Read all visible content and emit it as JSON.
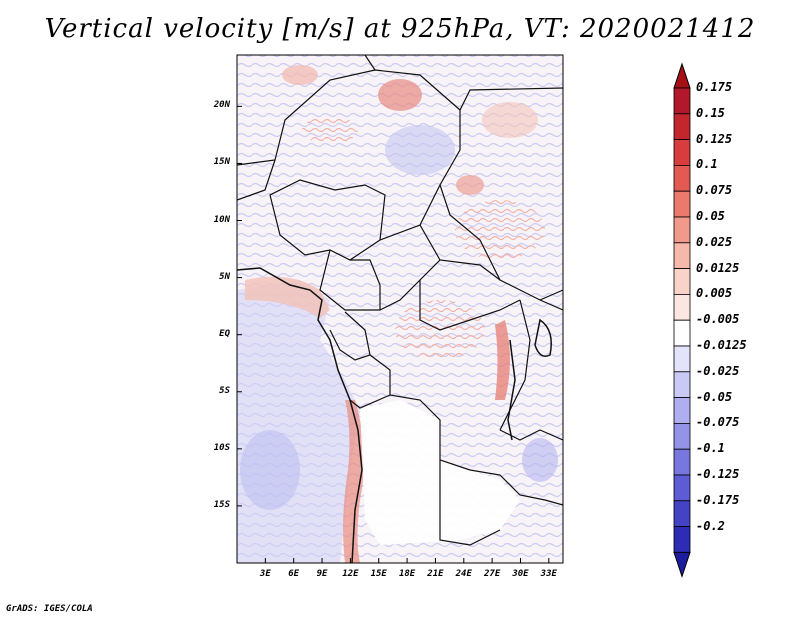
{
  "title": "Vertical velocity [m/s] at 925hPa, VT: 2020021412",
  "credit": "GrADS: IGES/COLA",
  "map": {
    "variable": "Vertical velocity",
    "units": "m/s",
    "level": "925hPa",
    "valid_time": "2020021412",
    "lon_range": [
      0,
      34.5
    ],
    "lat_range": [
      -20,
      24.5
    ],
    "lat_ticks": [
      {
        "value": 20,
        "label": "20N"
      },
      {
        "value": 15,
        "label": "15N"
      },
      {
        "value": 10,
        "label": "10N"
      },
      {
        "value": 5,
        "label": "5N"
      },
      {
        "value": 0,
        "label": "EQ"
      },
      {
        "value": -5,
        "label": "5S"
      },
      {
        "value": -10,
        "label": "10S"
      },
      {
        "value": -15,
        "label": "15S"
      }
    ],
    "lon_ticks": [
      {
        "value": 3,
        "label": "3E"
      },
      {
        "value": 6,
        "label": "6E"
      },
      {
        "value": 9,
        "label": "9E"
      },
      {
        "value": 12,
        "label": "12E"
      },
      {
        "value": 15,
        "label": "15E"
      },
      {
        "value": 18,
        "label": "18E"
      },
      {
        "value": 21,
        "label": "21E"
      },
      {
        "value": 24,
        "label": "24E"
      },
      {
        "value": 27,
        "label": "27E"
      },
      {
        "value": 30,
        "label": "30E"
      },
      {
        "value": 33,
        "label": "33E"
      }
    ]
  },
  "colorbar": {
    "levels": [
      {
        "label": "0.175",
        "color": "#b2182b"
      },
      {
        "label": "0.15",
        "color": "#c1272d"
      },
      {
        "label": "0.125",
        "color": "#d73d3d"
      },
      {
        "label": "0.1",
        "color": "#e25a52"
      },
      {
        "label": "0.075",
        "color": "#ea7a6c"
      },
      {
        "label": "0.05",
        "color": "#f19a8b"
      },
      {
        "label": "0.025",
        "color": "#f6b8ab"
      },
      {
        "label": "0.0125",
        "color": "#f9d2c8"
      },
      {
        "label": "0.005",
        "color": "#fce6e1"
      },
      {
        "label": "-0.005",
        "color": "#ffffff"
      },
      {
        "label": "-0.0125",
        "color": "#e3e3fb"
      },
      {
        "label": "-0.025",
        "color": "#c9c9f5"
      },
      {
        "label": "-0.05",
        "color": "#aeaef0"
      },
      {
        "label": "-0.075",
        "color": "#9393e8"
      },
      {
        "label": "-0.1",
        "color": "#7777df"
      },
      {
        "label": "-0.125",
        "color": "#5c5cd4"
      },
      {
        "label": "-0.175",
        "color": "#4343c6"
      },
      {
        "label": "-0.2",
        "color": "#2c2cb4"
      }
    ],
    "top_arrow_color": "#a50f15",
    "bottom_arrow_color": "#1c1c9e"
  }
}
